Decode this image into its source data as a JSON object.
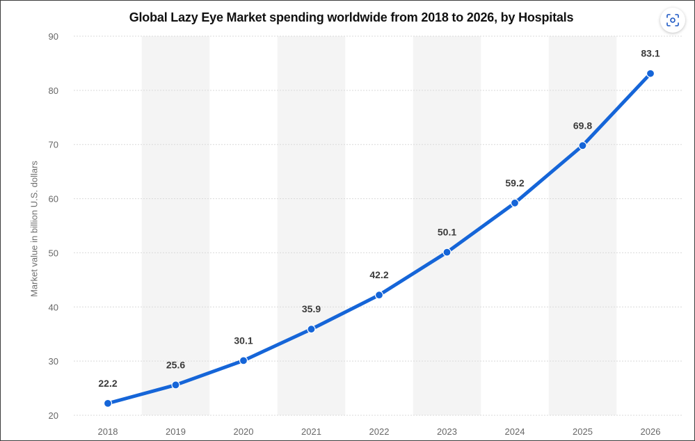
{
  "chart_data": {
    "type": "line",
    "title": "Global Lazy Eye Market spending worldwide from 2018 to 2026, by Hospitals",
    "xlabel": "",
    "ylabel": "Market value in billion U.S. dollars",
    "categories": [
      "2018",
      "2019",
      "2020",
      "2021",
      "2022",
      "2023",
      "2024",
      "2025",
      "2026"
    ],
    "series": [
      {
        "values": [
          22.2,
          25.6,
          30.1,
          35.9,
          42.2,
          50.1,
          59.2,
          69.8,
          83.1
        ]
      }
    ],
    "data_labels": [
      "22.2",
      "25.6",
      "30.1",
      "35.9",
      "42.2",
      "50.1",
      "59.2",
      "69.8",
      "83.1"
    ],
    "ylim": [
      20,
      90
    ],
    "yticks": [
      "20",
      "30",
      "40",
      "50",
      "60",
      "70",
      "80",
      "90"
    ],
    "grid": true,
    "colors": {
      "line": "#1565d8",
      "grid": "#d9d9d9",
      "band": "#f4f4f4"
    }
  },
  "icons": {
    "scan": "scan-icon"
  }
}
